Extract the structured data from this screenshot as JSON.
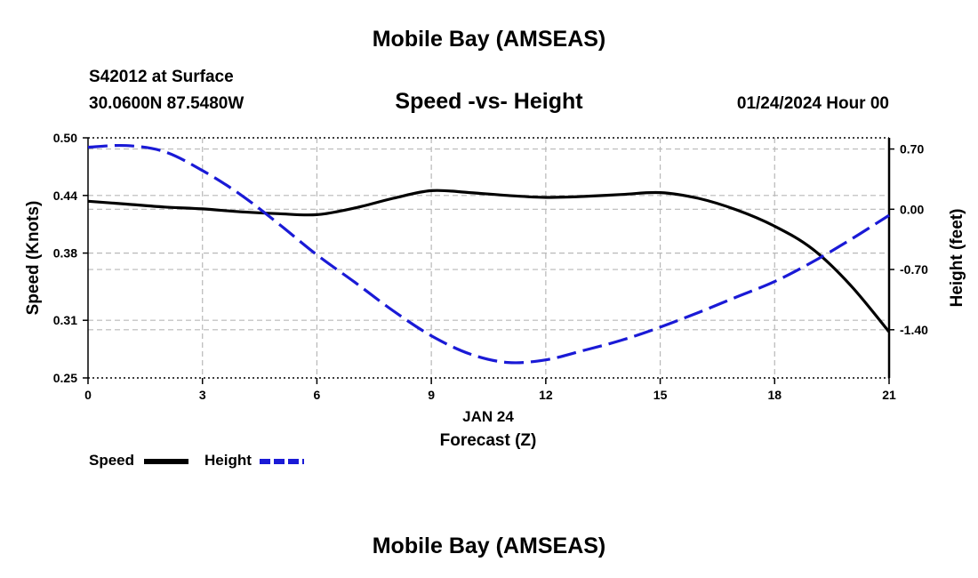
{
  "page": {
    "top_title": "Mobile Bay (AMSEAS)",
    "station": "S42012 at Surface",
    "coords": "30.0600N  87.5480W",
    "subtitle": "Speed -vs- Height",
    "datetime": "01/24/2024 Hour 00",
    "bottom_title": "Mobile Bay (AMSEAS)"
  },
  "legend": {
    "speed_label": "Speed",
    "height_label": "Height"
  },
  "colors": {
    "speed": "#000000",
    "height": "#1a1ad6",
    "grid": "#b8b8b8"
  },
  "chart_data": {
    "type": "line",
    "title": "Speed -vs- Height",
    "xlabel": "Forecast (Z)",
    "xlabel_date": "JAN 24",
    "ylabel_left": "Speed (Knots)",
    "ylabel_right": "Height (feet)",
    "xlim": [
      0,
      21
    ],
    "ylim_left": [
      0.25,
      0.5
    ],
    "ylim_right": [
      -1.96,
      0.83
    ],
    "x_ticks": [
      0,
      3,
      6,
      9,
      12,
      15,
      18,
      21
    ],
    "x_tick_labels": [
      "0",
      "3",
      "6",
      "9",
      "12",
      "15",
      "18",
      "21"
    ],
    "y_left_ticks": [
      0.25,
      0.31,
      0.38,
      0.44,
      0.5
    ],
    "y_left_tick_labels": [
      "0.25",
      "0.31",
      "0.38",
      "0.44",
      "0.50"
    ],
    "y_right_ticks": [
      0.7,
      0.0,
      -0.7,
      -1.4
    ],
    "y_right_tick_labels": [
      "0.70",
      "0.00",
      "-0.70",
      "-1.40"
    ],
    "grid": true,
    "legend_position": "bottom-left",
    "series": [
      {
        "name": "Speed",
        "axis": "left",
        "style": "solid",
        "x": [
          0,
          1,
          2,
          3,
          4,
          5,
          6,
          7,
          8,
          9,
          10,
          11,
          12,
          13,
          14,
          15,
          16,
          17,
          18,
          19,
          20,
          21
        ],
        "values": [
          0.434,
          0.431,
          0.428,
          0.426,
          0.423,
          0.421,
          0.42,
          0.427,
          0.437,
          0.445,
          0.443,
          0.44,
          0.438,
          0.439,
          0.441,
          0.443,
          0.437,
          0.425,
          0.408,
          0.384,
          0.346,
          0.298
        ]
      },
      {
        "name": "Height",
        "axis": "right",
        "style": "dashed",
        "x": [
          0,
          1,
          2,
          3,
          4,
          5,
          6,
          7,
          8,
          9,
          10,
          11,
          12,
          13,
          14,
          15,
          16,
          17,
          18,
          19,
          20,
          21
        ],
        "values": [
          0.72,
          0.74,
          0.67,
          0.45,
          0.17,
          -0.17,
          -0.53,
          -0.85,
          -1.18,
          -1.47,
          -1.68,
          -1.78,
          -1.75,
          -1.64,
          -1.52,
          -1.37,
          -1.2,
          -1.02,
          -0.84,
          -0.61,
          -0.35,
          -0.07
        ]
      }
    ]
  }
}
